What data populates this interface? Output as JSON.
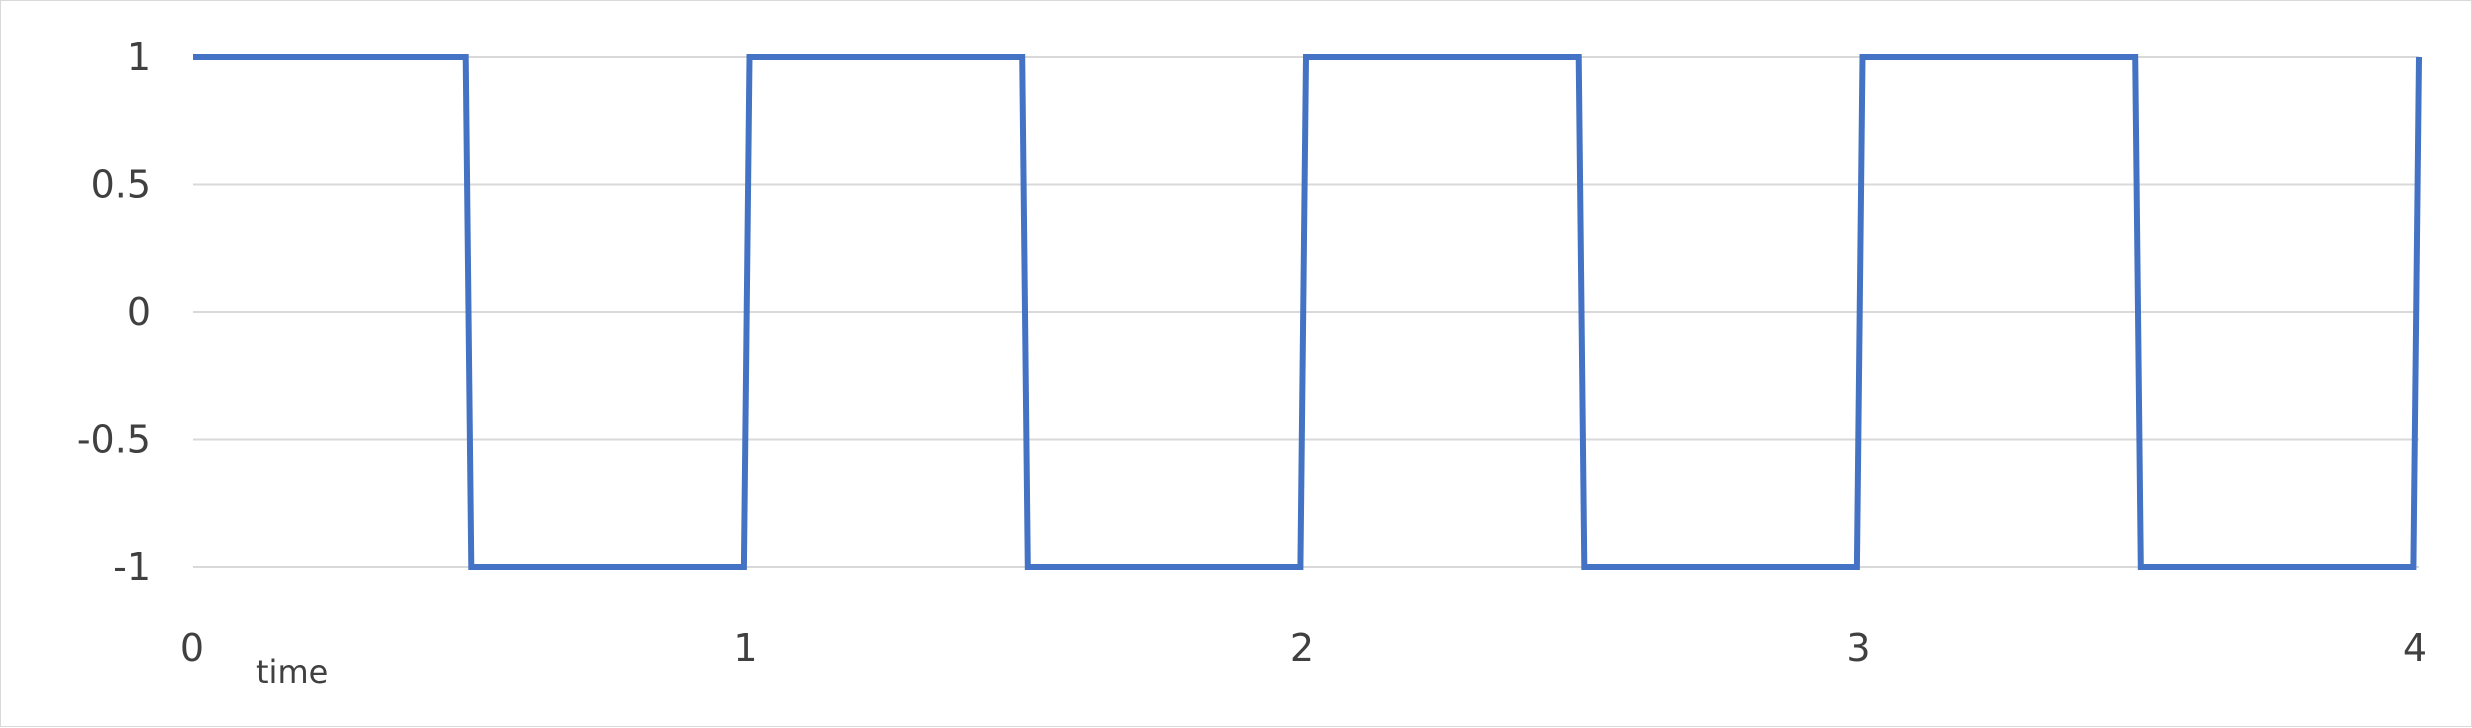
{
  "chart_data": {
    "type": "line",
    "title": "",
    "xlabel": "time",
    "ylabel": "",
    "xlim": [
      0,
      4
    ],
    "ylim": [
      -1,
      1
    ],
    "x_ticks": [
      "0",
      "1",
      "2",
      "3",
      "4"
    ],
    "y_ticks": [
      "1",
      "0.5",
      "0",
      "-0.5",
      "-1"
    ],
    "grid": "horizontal",
    "legend": "none",
    "series": [
      {
        "color": "#4472c4",
        "x": [
          0,
          0.49,
          0.5,
          0.99,
          1.0,
          1.49,
          1.5,
          1.99,
          2.0,
          2.49,
          2.5,
          2.99,
          3.0,
          3.49,
          3.5,
          3.99,
          4.0
        ],
        "y": [
          1,
          1,
          -1,
          -1,
          1,
          1,
          -1,
          -1,
          1,
          1,
          -1,
          -1,
          1,
          1,
          -1,
          -1,
          1
        ]
      }
    ]
  }
}
